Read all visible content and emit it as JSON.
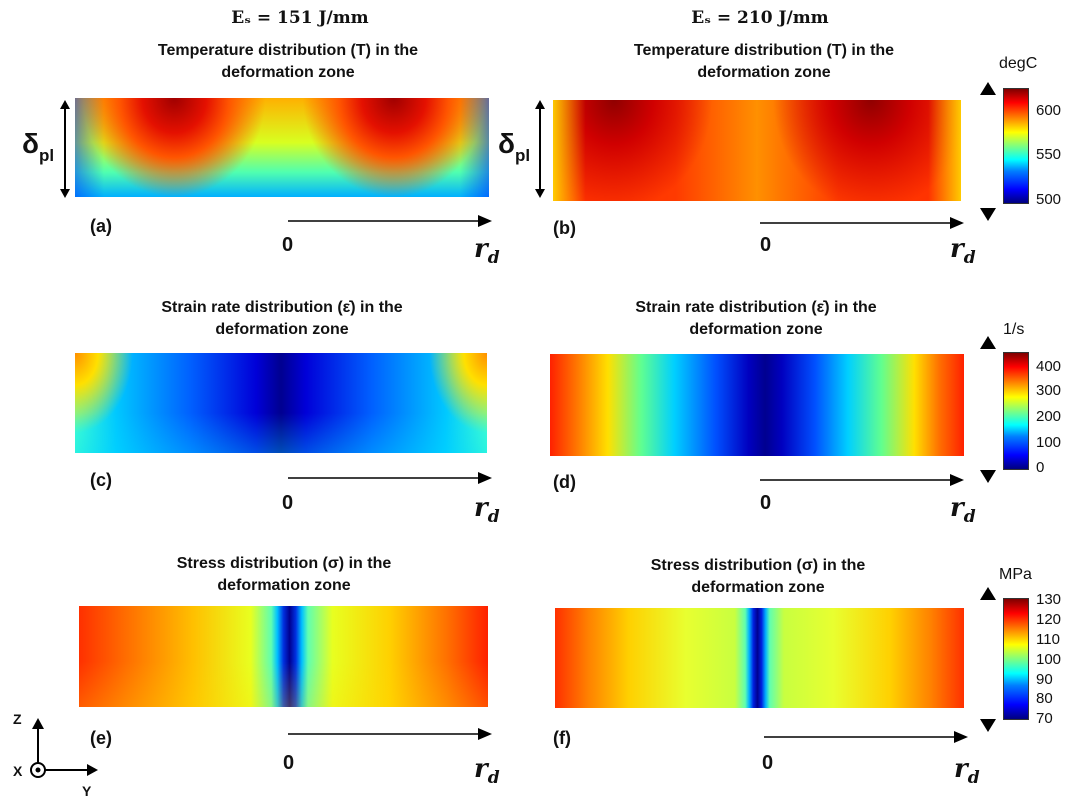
{
  "columns": {
    "left": "Eₛ = 151 J/mm",
    "right": "Eₛ = 210 J/mm"
  },
  "rows": [
    {
      "title_line1": "Temperature distribution (T) in the",
      "title_line2": "deformation zone"
    },
    {
      "title_line1": "Strain rate distribution (ε̇) in the",
      "title_line2": "deformation zone"
    },
    {
      "title_line1": "Stress distribution (σ) in the",
      "title_line2": "deformation zone"
    }
  ],
  "panels": {
    "a": "(a)",
    "b": "(b)",
    "c": "(c)",
    "d": "(d)",
    "e": "(e)",
    "f": "(f)"
  },
  "axis": {
    "origin": "0",
    "r_label": "r",
    "r_sub": "d"
  },
  "thickness": {
    "label": "δ",
    "sub": "pl"
  },
  "colorbars": [
    {
      "unit": "degC",
      "ticks": [
        "600",
        "550",
        "500"
      ]
    },
    {
      "unit": "1/s",
      "ticks": [
        "400",
        "300",
        "200",
        "100",
        "0"
      ]
    },
    {
      "unit": "MPa",
      "ticks": [
        "130",
        "120",
        "110",
        "100",
        "90",
        "80",
        "70"
      ]
    }
  ],
  "triad": {
    "z": "Z",
    "x": "X",
    "y": "Y"
  }
}
